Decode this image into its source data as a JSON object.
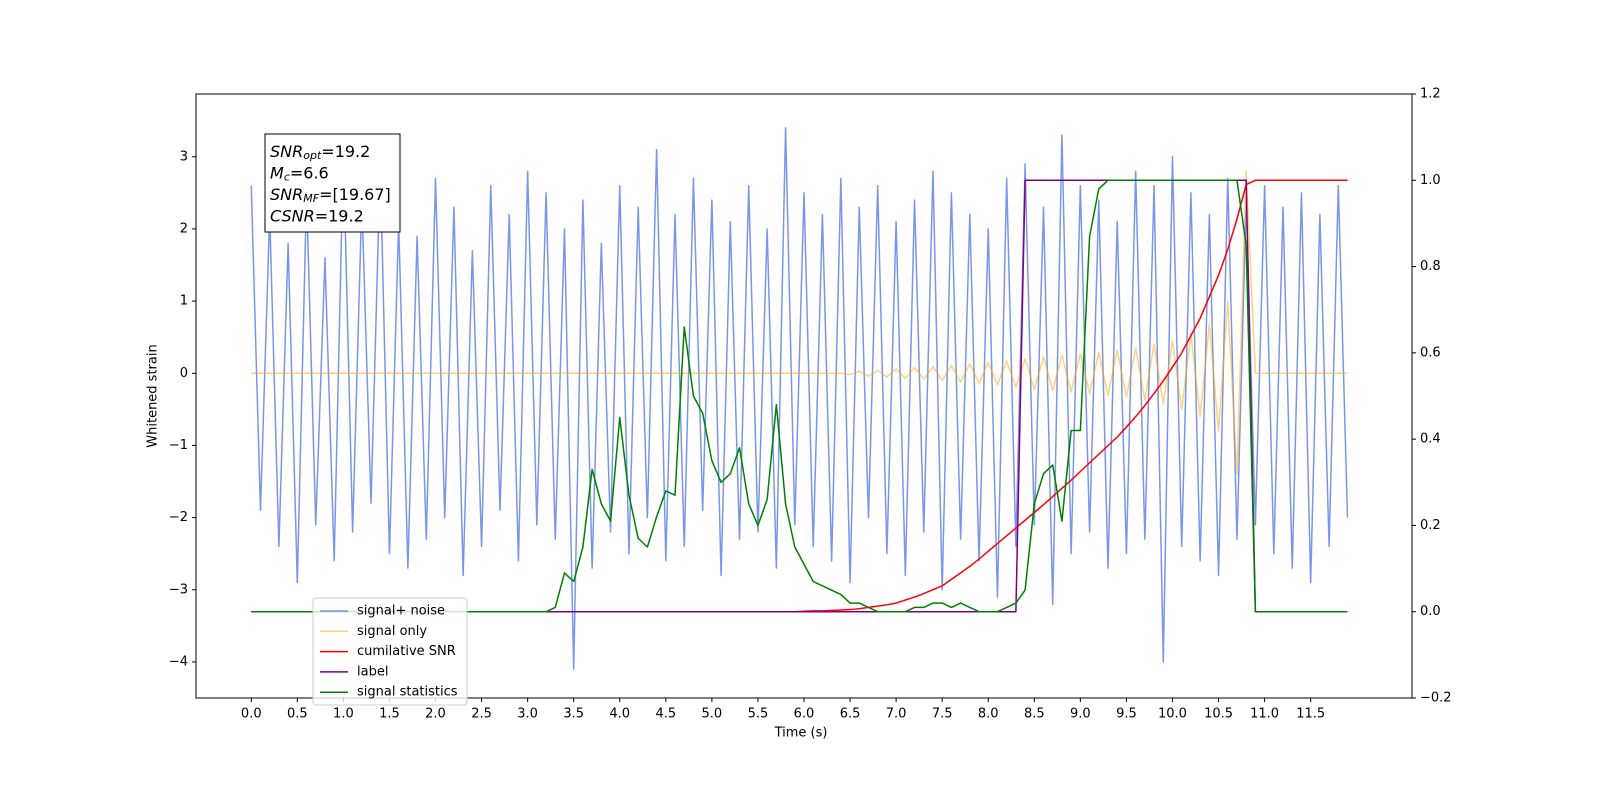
{
  "chart_data": {
    "type": "line",
    "xlabel": "Time (s)",
    "ylabel": "Whitened strain",
    "xlim": [
      -0.6,
      12.6
    ],
    "ylim": [
      -4.5,
      3.87
    ],
    "y2lim": [
      -0.2,
      1.2
    ],
    "xticks": [
      {
        "value": 0,
        "label": "0.0"
      },
      0.5,
      {
        "value": 1,
        "label": "1.0"
      },
      1.5,
      {
        "value": 2,
        "label": "2.0"
      },
      2.5,
      {
        "value": 3,
        "label": "3.0"
      },
      3.5,
      {
        "value": 4,
        "label": "4.0"
      },
      4.5,
      {
        "value": 5,
        "label": "5.0"
      },
      5.5,
      {
        "value": 6,
        "label": "6.0"
      },
      6.5,
      {
        "value": 7,
        "label": "7.0"
      },
      7.5,
      {
        "value": 8,
        "label": "8.0"
      },
      8.5,
      {
        "value": 9,
        "label": "9.0"
      },
      9.5,
      {
        "value": 10,
        "label": "10.0"
      },
      10.5,
      {
        "value": 11,
        "label": "11.0"
      },
      11.5
    ],
    "yticks": [
      {
        "value": -4,
        "label": "−4"
      },
      {
        "value": -3,
        "label": "−3"
      },
      {
        "value": -2,
        "label": "−2"
      },
      {
        "value": -1,
        "label": "−1"
      },
      0,
      1,
      2,
      3
    ],
    "y2ticks": [
      {
        "value": -0.2,
        "label": "−0.2"
      },
      {
        "value": 0,
        "label": "0.0"
      },
      0.2,
      0.4,
      0.6,
      0.8,
      {
        "value": 1,
        "label": "1.0"
      },
      1.2
    ],
    "grid": false,
    "legend": "lower left",
    "annotation": [
      {
        "name": "SNR",
        "sub": "opt",
        "text": "=19.2"
      },
      {
        "name": "M",
        "sub": "c",
        "text": "=6.6"
      },
      {
        "name": "SNR",
        "sub": "MF",
        "text": "=[19.67]"
      },
      {
        "name": "CSNR",
        "text": "=19.2"
      }
    ],
    "x": [
      0.0,
      0.1,
      0.2,
      0.3,
      0.4,
      0.5,
      0.6,
      0.7,
      0.8,
      0.9,
      1.0,
      1.1,
      1.2,
      1.3,
      1.4,
      1.5,
      1.6,
      1.7,
      1.8,
      1.9,
      2.0,
      2.1,
      2.2,
      2.3,
      2.4,
      2.5,
      2.6,
      2.7,
      2.8,
      2.9,
      3.0,
      3.1,
      3.2,
      3.3,
      3.4,
      3.5,
      3.6,
      3.7,
      3.8,
      3.9,
      4.0,
      4.1,
      4.2,
      4.3,
      4.4,
      4.5,
      4.6,
      4.7,
      4.8,
      4.9,
      5.0,
      5.1,
      5.2,
      5.3,
      5.4,
      5.5,
      5.6,
      5.7,
      5.8,
      5.9,
      6.0,
      6.1,
      6.2,
      6.3,
      6.4,
      6.5,
      6.6,
      6.7,
      6.8,
      6.9,
      7.0,
      7.1,
      7.2,
      7.3,
      7.4,
      7.5,
      7.6,
      7.7,
      7.8,
      7.9,
      8.0,
      8.1,
      8.2,
      8.3,
      8.4,
      8.5,
      8.6,
      8.7,
      8.8,
      8.9,
      9.0,
      9.1,
      9.2,
      9.3,
      9.4,
      9.5,
      9.6,
      9.7,
      9.8,
      9.9,
      10.0,
      10.1,
      10.2,
      10.3,
      10.4,
      10.5,
      10.6,
      10.7,
      10.8,
      10.9,
      11.0,
      11.1,
      11.2,
      11.3,
      11.4,
      11.5,
      11.6,
      11.7,
      11.8,
      11.9
    ],
    "series": [
      {
        "name": "signal+ noise",
        "color": "royalblue",
        "opacity": 0.7,
        "axis": "y",
        "values": [
          2.6,
          -1.9,
          2.2,
          -2.4,
          1.8,
          -2.9,
          2.5,
          -2.1,
          1.6,
          -2.6,
          3.1,
          -2.2,
          2.4,
          -1.8,
          2.9,
          -2.5,
          2.1,
          -2.7,
          1.9,
          -2.3,
          2.7,
          -2.0,
          2.3,
          -2.8,
          1.7,
          -2.4,
          2.6,
          -1.9,
          2.2,
          -2.6,
          2.8,
          -2.1,
          2.5,
          -2.3,
          2.0,
          -4.1,
          2.4,
          -2.7,
          1.8,
          -2.2,
          2.6,
          -2.5,
          2.3,
          -2.0,
          3.1,
          -2.6,
          2.2,
          -2.4,
          2.7,
          -1.9,
          2.4,
          -2.8,
          2.1,
          -2.3,
          2.6,
          -2.2,
          2.0,
          -2.7,
          3.4,
          -2.1,
          2.5,
          -2.4,
          2.2,
          -2.6,
          2.7,
          -2.9,
          2.3,
          -2.0,
          2.6,
          -2.5,
          2.1,
          -2.8,
          2.4,
          -2.2,
          2.8,
          -3.0,
          2.5,
          -2.3,
          2.2,
          -2.6,
          2.0,
          -3.1,
          2.7,
          -2.4,
          2.9,
          -2.1,
          2.3,
          -3.2,
          3.3,
          -2.5,
          2.6,
          -2.2,
          2.4,
          -2.7,
          2.1,
          -2.5,
          2.8,
          -2.3,
          2.6,
          -4.0,
          3.0,
          -2.4,
          2.5,
          -2.6,
          2.2,
          -2.8,
          2.7,
          -2.3,
          2.4,
          -2.1,
          2.6,
          -2.5,
          2.3,
          -2.7,
          2.5,
          -2.9,
          2.2,
          -2.4,
          2.6,
          -2.0
        ]
      },
      {
        "name": "signal only",
        "color": "orange",
        "opacity": 0.5,
        "axis": "y",
        "values": [
          0,
          0,
          0,
          0,
          0,
          0,
          0,
          0,
          0,
          0,
          0,
          0,
          0,
          0,
          0,
          0,
          0,
          0,
          0,
          0,
          0,
          0,
          0,
          0,
          0,
          0,
          0,
          0,
          0,
          0,
          0,
          0,
          0,
          0,
          0,
          0,
          0,
          0,
          0,
          0,
          0,
          0,
          0,
          0,
          0,
          0,
          0,
          0,
          0,
          0,
          0,
          0,
          0,
          0,
          0,
          0,
          0,
          0,
          0,
          0,
          0,
          0,
          0,
          0,
          0,
          -0.02,
          0.03,
          -0.04,
          0.04,
          -0.05,
          0.06,
          -0.07,
          0.08,
          -0.08,
          0.09,
          -0.1,
          0.11,
          -0.12,
          0.13,
          -0.14,
          0.15,
          -0.16,
          0.17,
          -0.19,
          0.2,
          -0.22,
          0.23,
          -0.24,
          0.25,
          -0.26,
          0.27,
          -0.28,
          0.29,
          -0.31,
          0.32,
          -0.33,
          0.35,
          -0.37,
          0.4,
          -0.42,
          0.45,
          -0.5,
          0.55,
          -0.6,
          0.68,
          -0.8,
          1.0,
          -1.4,
          2.8,
          0,
          0,
          0,
          0,
          0,
          0,
          0,
          0,
          0,
          0,
          0
        ]
      },
      {
        "name": "cumilative SNR",
        "color": "red",
        "opacity": 1,
        "axis": "y2",
        "values": [
          0,
          0,
          0,
          0,
          0,
          0,
          0,
          0,
          0,
          0,
          0,
          0,
          0,
          0,
          0,
          0,
          0,
          0,
          0,
          0,
          0,
          0,
          0,
          0,
          0,
          0,
          0,
          0,
          0,
          0,
          0,
          0,
          0,
          0,
          0,
          0,
          0,
          0,
          0,
          0,
          0,
          0,
          0,
          0,
          0,
          0,
          0,
          0,
          0,
          0,
          0,
          0,
          0,
          0,
          0,
          0,
          0,
          0,
          0,
          0,
          0.001,
          0.002,
          0.002,
          0.003,
          0.004,
          0.005,
          0.007,
          0.01,
          0.013,
          0.016,
          0.02,
          0.027,
          0.034,
          0.042,
          0.051,
          0.06,
          0.075,
          0.09,
          0.105,
          0.122,
          0.14,
          0.158,
          0.176,
          0.194,
          0.212,
          0.23,
          0.248,
          0.267,
          0.286,
          0.305,
          0.325,
          0.345,
          0.365,
          0.385,
          0.405,
          0.428,
          0.452,
          0.478,
          0.506,
          0.535,
          0.567,
          0.6,
          0.64,
          0.68,
          0.73,
          0.78,
          0.84,
          0.91,
          0.99,
          1.0,
          1.0,
          1.0,
          1.0,
          1.0,
          1.0,
          1.0,
          1.0,
          1.0,
          1.0,
          1.0
        ]
      },
      {
        "name": "label",
        "color": "purple",
        "opacity": 1,
        "axis": "y2",
        "values": [
          0,
          0,
          0,
          0,
          0,
          0,
          0,
          0,
          0,
          0,
          0,
          0,
          0,
          0,
          0,
          0,
          0,
          0,
          0,
          0,
          0,
          0,
          0,
          0,
          0,
          0,
          0,
          0,
          0,
          0,
          0,
          0,
          0,
          0,
          0,
          0,
          0,
          0,
          0,
          0,
          0,
          0,
          0,
          0,
          0,
          0,
          0,
          0,
          0,
          0,
          0,
          0,
          0,
          0,
          0,
          0,
          0,
          0,
          0,
          0,
          0,
          0,
          0,
          0,
          0,
          0,
          0,
          0,
          0,
          0,
          0,
          0,
          0,
          0,
          0,
          0,
          0,
          0,
          0,
          0,
          0,
          0,
          0,
          0,
          1,
          1,
          1,
          1,
          1,
          1,
          1,
          1,
          1,
          1,
          1,
          1,
          1,
          1,
          1,
          1,
          1,
          1,
          1,
          1,
          1,
          1,
          1,
          1,
          1,
          0,
          0,
          0,
          0,
          0,
          0,
          0,
          0,
          0,
          0,
          0
        ]
      },
      {
        "name": "signal statistics",
        "color": "green",
        "opacity": 1,
        "axis": "y2",
        "values": [
          0,
          0,
          0,
          0,
          0,
          0,
          0,
          0,
          0,
          0,
          0,
          0,
          0,
          0,
          0,
          0,
          0,
          0,
          0,
          0,
          0,
          0,
          0,
          0,
          0,
          0,
          0,
          0,
          0,
          0,
          0,
          0,
          0,
          0.01,
          0.09,
          0.07,
          0.15,
          0.33,
          0.25,
          0.21,
          0.45,
          0.27,
          0.17,
          0.15,
          0.22,
          0.28,
          0.27,
          0.66,
          0.5,
          0.46,
          0.35,
          0.3,
          0.32,
          0.38,
          0.25,
          0.2,
          0.26,
          0.48,
          0.25,
          0.15,
          0.11,
          0.07,
          0.06,
          0.05,
          0.04,
          0.02,
          0.02,
          0.01,
          0,
          0,
          0,
          0,
          0.01,
          0.01,
          0.02,
          0.02,
          0.01,
          0.02,
          0.01,
          0,
          0,
          0,
          0.01,
          0.02,
          0.05,
          0.25,
          0.32,
          0.34,
          0.21,
          0.42,
          0.42,
          0.87,
          0.98,
          1.0,
          1.0,
          1.0,
          1.0,
          1.0,
          1.0,
          1.0,
          1.0,
          1.0,
          1.0,
          1.0,
          1.0,
          1.0,
          1.0,
          1.0,
          0.85,
          0,
          0,
          0,
          0,
          0,
          0,
          0,
          0,
          0,
          0,
          0
        ]
      }
    ]
  }
}
